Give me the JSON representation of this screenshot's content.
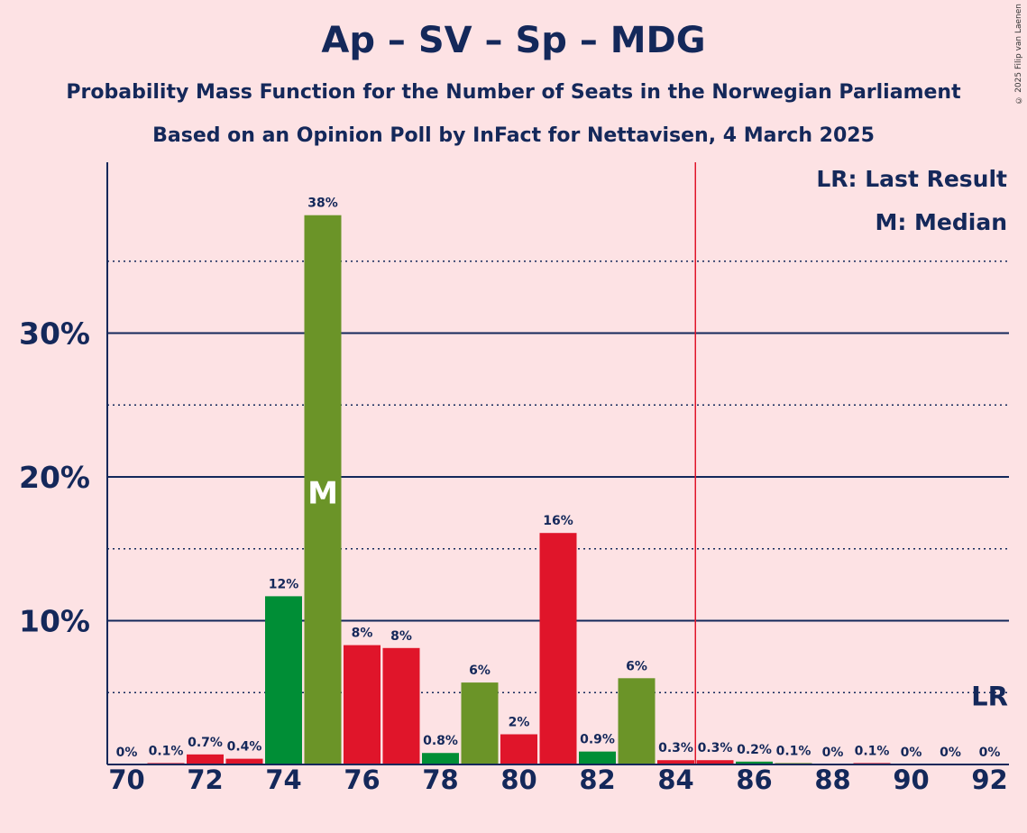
{
  "header": {
    "title": "Ap – SV – Sp – MDG",
    "subtitle1": "Probability Mass Function for the Number of Seats in the Norwegian Parliament",
    "subtitle2": "Based on an Opinion Poll by InFact for Nettavisen, 4 March 2025",
    "copyright": "© 2025 Filip van Laenen"
  },
  "legend": {
    "last_result": "LR: Last Result",
    "median": "M: Median"
  },
  "colors": {
    "background": "#fde2e4",
    "axis": "#14285a",
    "red": "#e0152a",
    "green": "#008e36",
    "olive": "#6b9428",
    "majority_line": "#e0152a"
  },
  "chart_data": {
    "type": "bar",
    "x": [
      70,
      71,
      72,
      73,
      74,
      75,
      76,
      77,
      78,
      79,
      80,
      81,
      82,
      83,
      84,
      85,
      86,
      87,
      88,
      89,
      90,
      91,
      92
    ],
    "values": [
      0,
      0.1,
      0.7,
      0.4,
      11.7,
      38.2,
      8.3,
      8.1,
      0.8,
      5.7,
      2.1,
      16.1,
      0.9,
      6.0,
      0.3,
      0.3,
      0.2,
      0.1,
      0,
      0.1,
      0,
      0,
      0
    ],
    "labels": [
      "0%",
      "0.1%",
      "0.7%",
      "0.4%",
      "12%",
      "38%",
      "8%",
      "8%",
      "0.8%",
      "6%",
      "2%",
      "16%",
      "0.9%",
      "6%",
      "0.3%",
      "0.3%",
      "0.2%",
      "0.1%",
      "0%",
      "0.1%",
      "0%",
      "0%",
      "0%"
    ],
    "bar_colors": [
      "red",
      "red",
      "red",
      "red",
      "green",
      "olive",
      "red",
      "red",
      "green",
      "olive",
      "red",
      "red",
      "green",
      "olive",
      "red",
      "red",
      "green",
      "olive",
      "red",
      "red",
      "green",
      "olive",
      "red"
    ],
    "x_tick_labels": [
      "70",
      "72",
      "74",
      "76",
      "78",
      "80",
      "82",
      "84",
      "86",
      "88",
      "90",
      "92"
    ],
    "y_tick_labels": [
      "10%",
      "20%",
      "30%"
    ],
    "ylim": [
      0,
      42
    ],
    "major_gridlines": [
      10,
      20,
      30
    ],
    "minor_gridlines": [
      5,
      15,
      25,
      35
    ],
    "median_seat": 75,
    "median_label": "M",
    "majority_line_between": [
      84,
      85
    ],
    "last_result_seat": 92,
    "last_result_label": "LR"
  }
}
